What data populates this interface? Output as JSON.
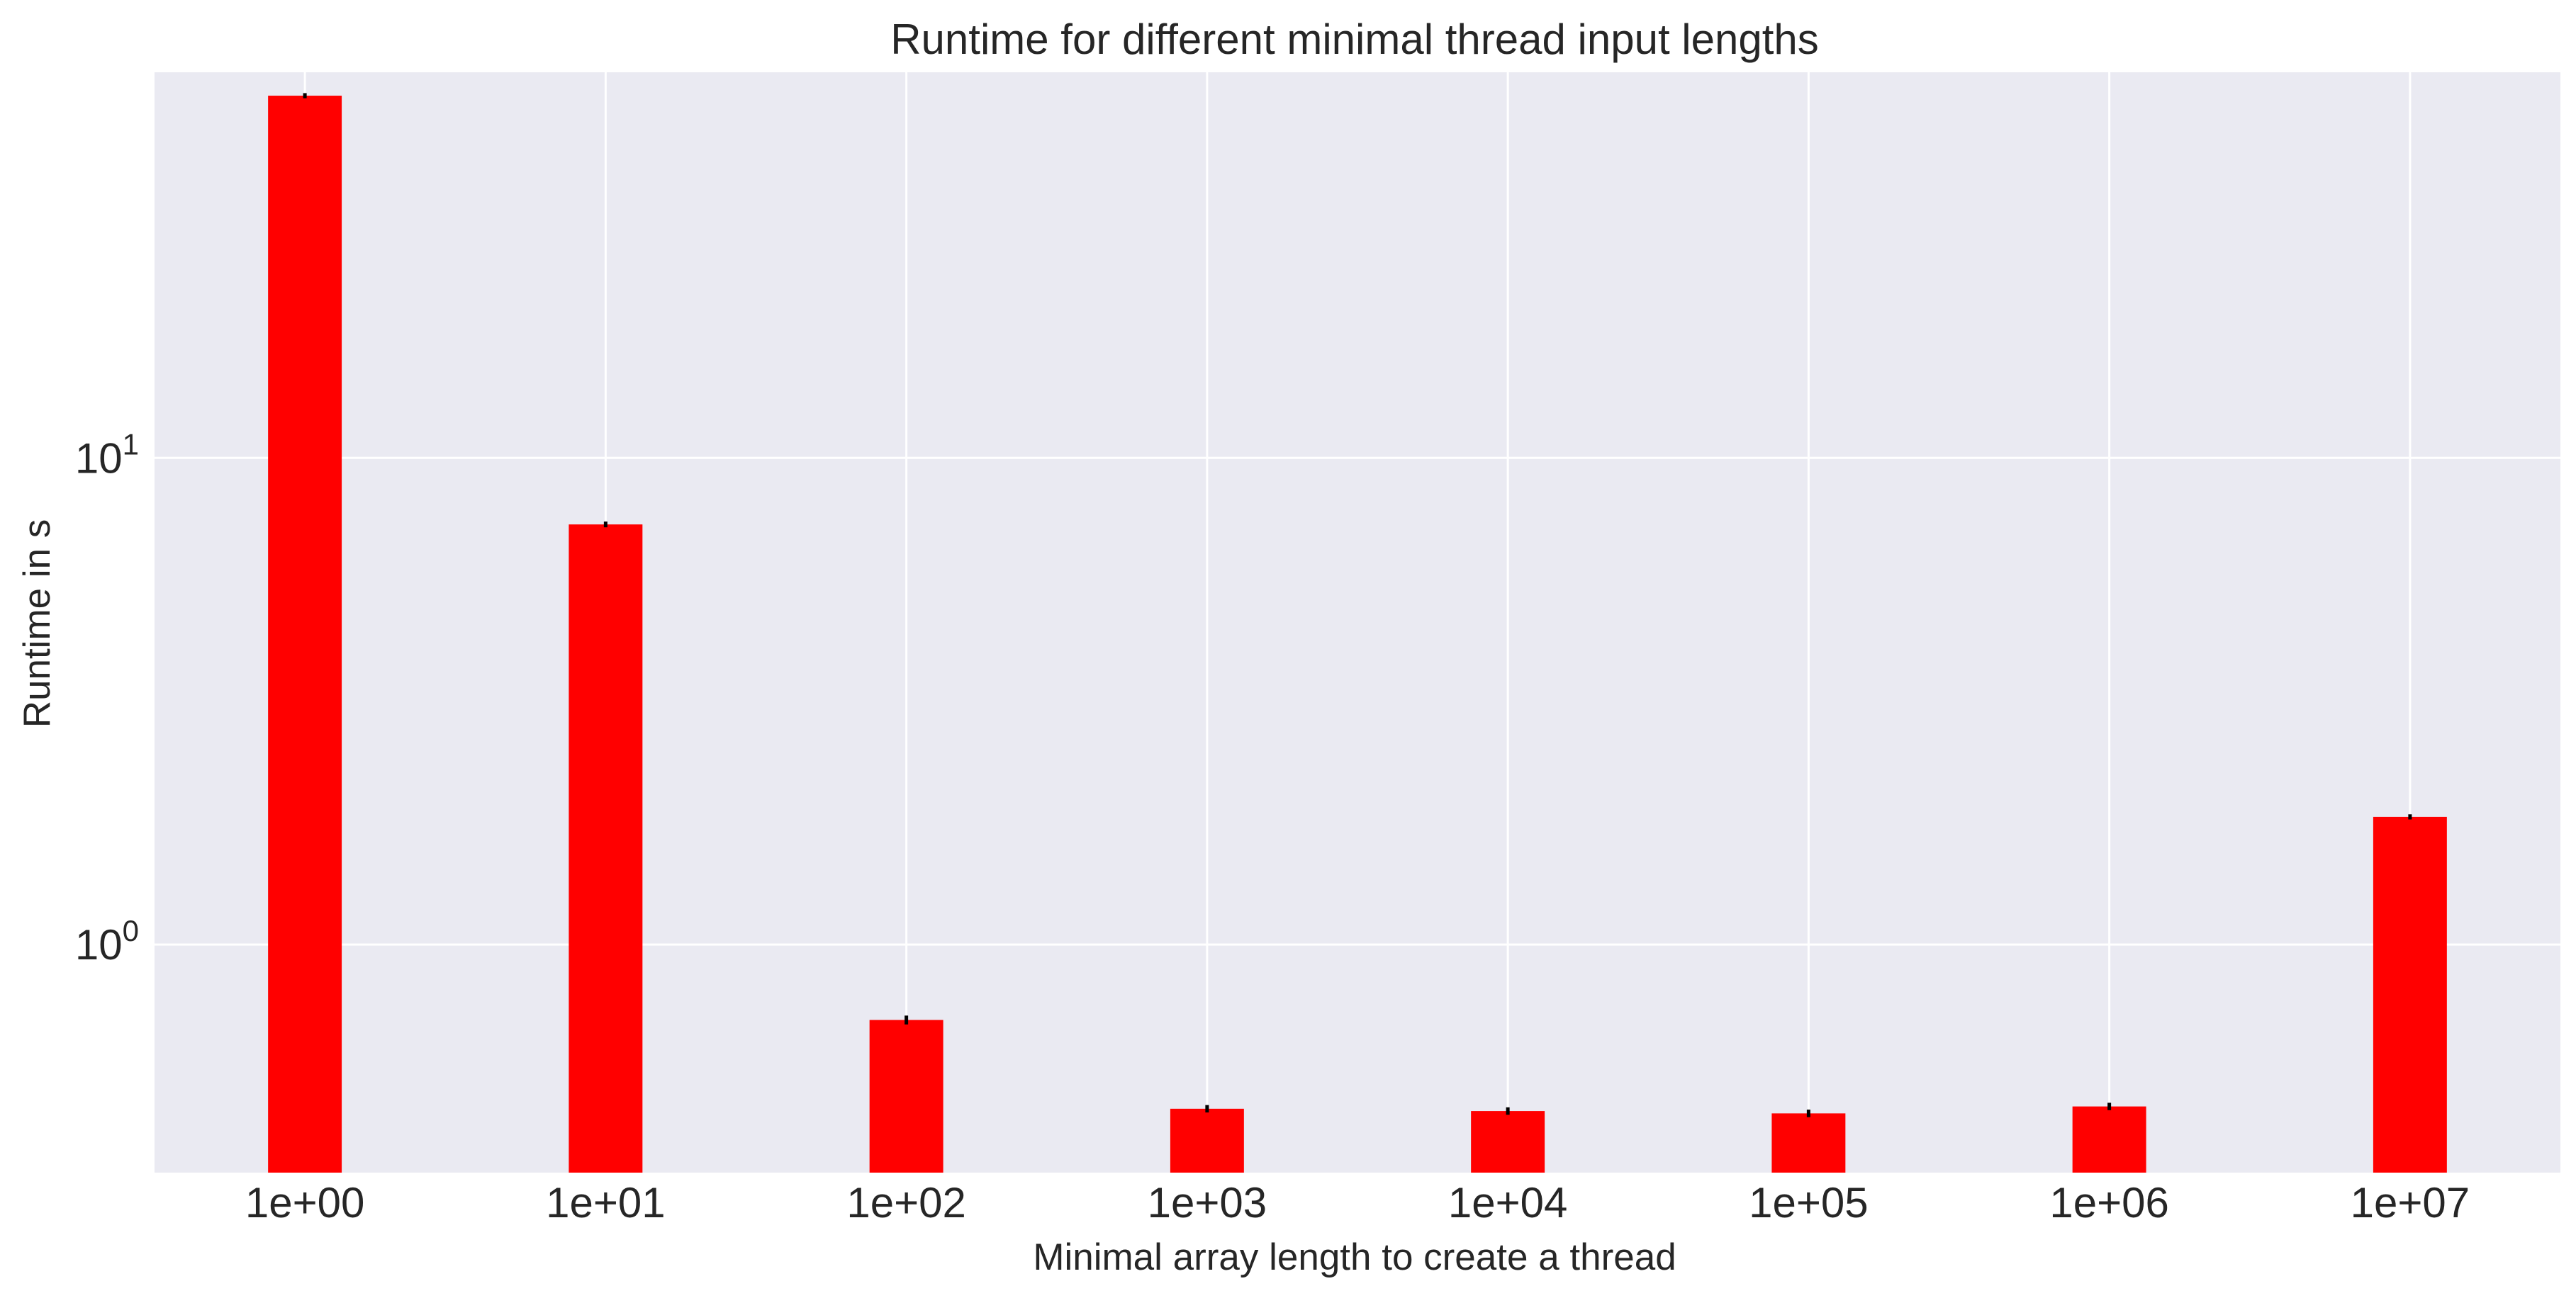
{
  "colors": {
    "plot_background": "#eaeaf2",
    "grid": "#ffffff",
    "bar": "#ff0000",
    "error_bar": "#000000",
    "text": "#262626"
  },
  "chart_data": {
    "type": "bar",
    "title": "Runtime for different minimal thread input lengths",
    "xlabel": "Minimal array length to create a thread",
    "ylabel": "Runtime in s",
    "yscale": "log",
    "ylim": [
      0.34,
      62
    ],
    "grid": true,
    "categories": [
      "1e+00",
      "1e+01",
      "1e+02",
      "1e+03",
      "1e+04",
      "1e+05",
      "1e+06",
      "1e+07"
    ],
    "values": [
      55.5,
      7.3,
      0.7,
      0.46,
      0.455,
      0.45,
      0.465,
      1.83
    ],
    "error": [
      0.3,
      0.05,
      0.01,
      0.005,
      0.005,
      0.005,
      0.005,
      0.01
    ],
    "yticks": [
      {
        "value": 1,
        "base": "10",
        "exp": "0"
      },
      {
        "value": 10,
        "base": "10",
        "exp": "1"
      }
    ]
  }
}
